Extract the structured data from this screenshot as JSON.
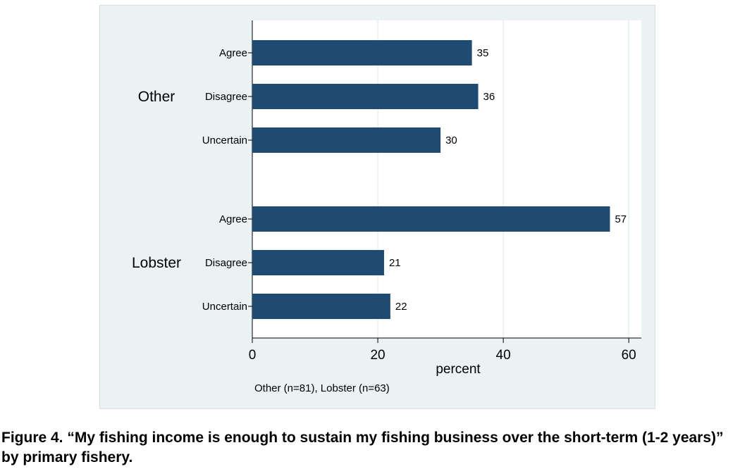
{
  "chart_data": {
    "type": "bar",
    "orientation": "horizontal",
    "groups": [
      {
        "name": "Other",
        "categories": [
          "Agree",
          "Disagree",
          "Uncertain"
        ],
        "values": [
          35,
          36,
          30
        ]
      },
      {
        "name": "Lobster",
        "categories": [
          "Agree",
          "Disagree",
          "Uncertain"
        ],
        "values": [
          57,
          21,
          22
        ]
      }
    ],
    "xlabel": "percent",
    "xlim": [
      0,
      62
    ],
    "xticks": [
      0,
      20,
      40,
      60
    ],
    "grid": true,
    "note": "Other (n=81), Lobster (n=63)",
    "bar_color": "#1f4b73",
    "plot_background": "#ffffff",
    "figure_background": "#eaf2f3",
    "grid_color": "#e6eeee"
  },
  "caption": "Figure 4. “My fishing income is enough to sustain my fishing business over the short-term (1-2 years)” by primary fishery."
}
